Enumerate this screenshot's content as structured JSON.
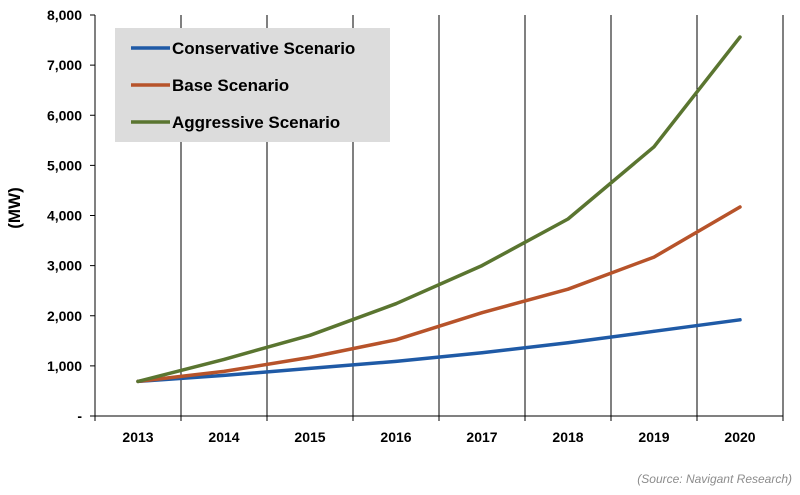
{
  "chart_data": {
    "type": "line",
    "title": "",
    "xlabel": "",
    "ylabel": "(MW)",
    "categories": [
      "2013",
      "2014",
      "2015",
      "2016",
      "2017",
      "2018",
      "2019",
      "2020"
    ],
    "ylim": [
      0,
      8000
    ],
    "yticks": [
      0,
      1000,
      2000,
      3000,
      4000,
      5000,
      6000,
      7000,
      8000
    ],
    "ytick_labels": [
      "-",
      "1,000",
      "2,000",
      "3,000",
      "4,000",
      "5,000",
      "6,000",
      "7,000",
      "8,000"
    ],
    "grid": "vertical",
    "legend_position": "top-left",
    "series": [
      {
        "name": "Conservative Scenario",
        "color": "#1f5aa6",
        "values": [
          690,
          810,
          950,
          1090,
          1260,
          1460,
          1690,
          1920
        ]
      },
      {
        "name": "Base Scenario",
        "color": "#b7532a",
        "values": [
          690,
          890,
          1170,
          1520,
          2060,
          2530,
          3170,
          4170
        ]
      },
      {
        "name": "Aggressive Scenario",
        "color": "#5a7530",
        "values": [
          690,
          1130,
          1610,
          2240,
          3000,
          3930,
          5370,
          7560
        ]
      }
    ],
    "source": "(Source: Navigant Research)"
  }
}
